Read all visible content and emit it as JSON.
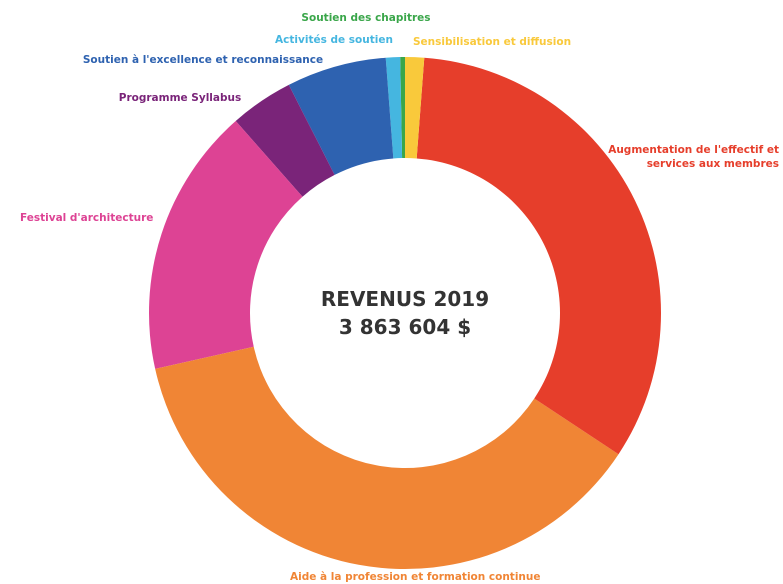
{
  "chart_data": {
    "type": "donut",
    "center_title": "REVENUS 2019",
    "center_value": "3 863 604 $",
    "categories": [
      "Sensibilisation et diffusion",
      "Augmentation de l'effectif et services aux membres",
      "Aide à la profession et formation continue",
      "Festival d'architecture",
      "Programme Syllabus",
      "Soutien à l'excellence et reconnaissance",
      "Activités de soutien",
      "Soutien des chapitres"
    ],
    "values": [
      1.2,
      33.1,
      37.2,
      17,
      4,
      6.3,
      0.9,
      0.3
    ],
    "colors": [
      "#f9c93b",
      "#e63e2b",
      "#f08535",
      "#dd4394",
      "#7a2479",
      "#2e62b0",
      "#45b6e0",
      "#3aa64a"
    ]
  }
}
